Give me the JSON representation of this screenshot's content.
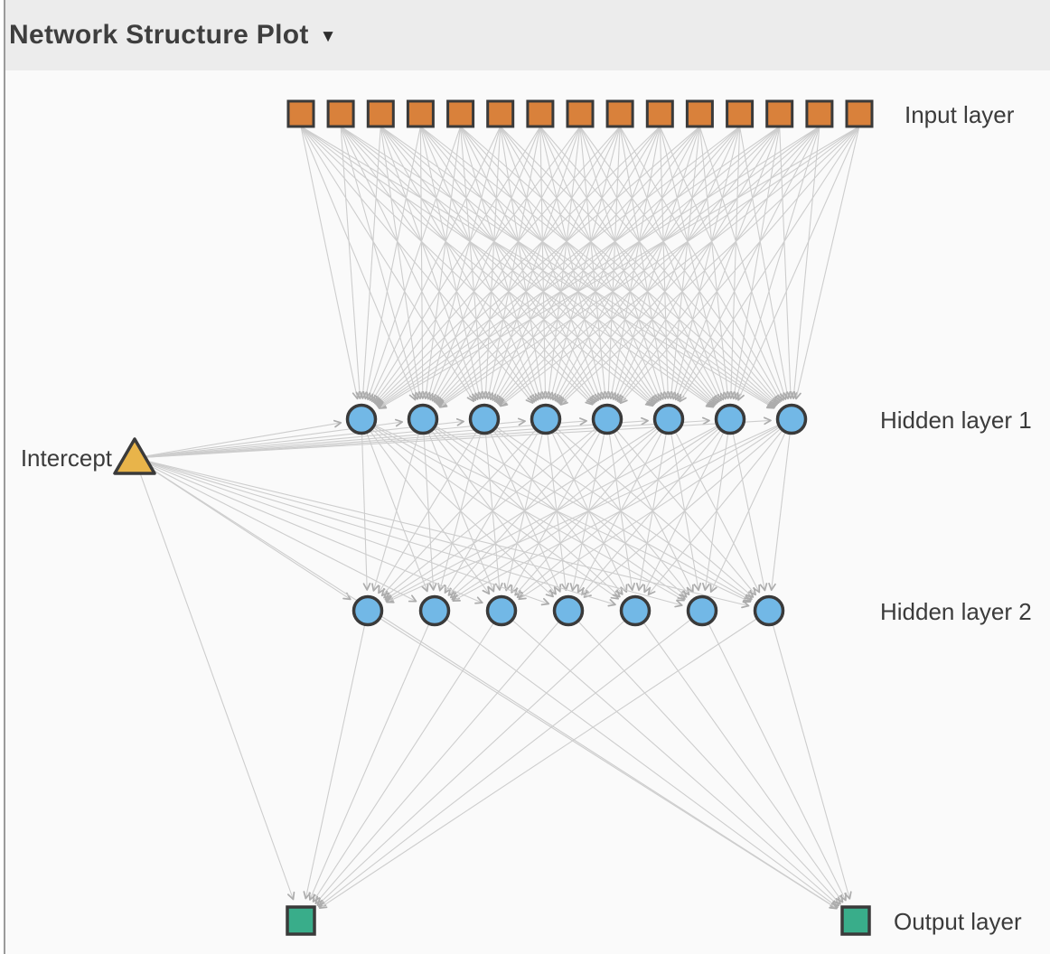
{
  "header": {
    "title": "Network Structure Plot",
    "collapse_icon": "▼"
  },
  "colors": {
    "header_bg": "#ECECEC",
    "plot_bg": "#FAFAFA",
    "divider": "#9B9B9B",
    "label_text": "#3B3B3B",
    "node_border": "#3A3A3A",
    "input_fill": "#D9813B",
    "hidden_fill": "#72B8E6",
    "output_fill": "#39AD8A",
    "intercept_fill": "#E8B44A",
    "edge": "#CDCDCD",
    "arrow": "#ACACAC"
  },
  "network": {
    "intercept": {
      "label": "Intercept",
      "shape": "triangle",
      "count": 1,
      "fill": "#E8B44A"
    },
    "layers": [
      {
        "name": "input",
        "label": "Input layer",
        "shape": "square",
        "count": 15,
        "fill": "#D9813B"
      },
      {
        "name": "hidden1",
        "label": "Hidden layer 1",
        "shape": "circle",
        "count": 8,
        "fill": "#72B8E6"
      },
      {
        "name": "hidden2",
        "label": "Hidden layer 2",
        "shape": "circle",
        "count": 7,
        "fill": "#72B8E6"
      },
      {
        "name": "output",
        "label": "Output layer",
        "shape": "square",
        "count": 2,
        "fill": "#39AD8A"
      }
    ],
    "connections": [
      {
        "from": "input",
        "to": "hidden1"
      },
      {
        "from": "hidden1",
        "to": "hidden2"
      },
      {
        "from": "hidden2",
        "to": "output"
      },
      {
        "from": "intercept",
        "to": "hidden1"
      },
      {
        "from": "intercept",
        "to": "hidden2"
      },
      {
        "from": "intercept",
        "to": "output"
      }
    ]
  }
}
